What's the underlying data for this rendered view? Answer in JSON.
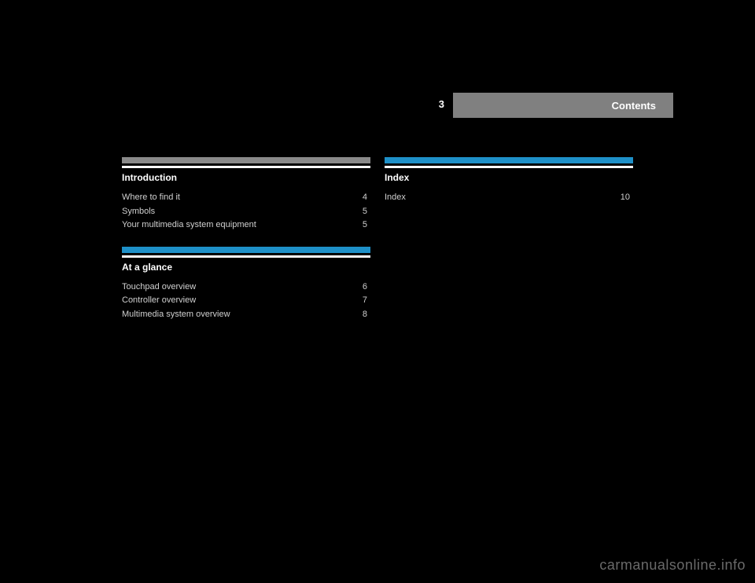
{
  "header": {
    "page_number": "3",
    "title": "Contents"
  },
  "columns": {
    "left": {
      "sections": [
        {
          "style": "gray",
          "title": "Introduction",
          "entries": [
            {
              "text": "Where to find it",
              "page": "4"
            },
            {
              "text": "Symbols",
              "page": "5"
            },
            {
              "text": "Your multimedia system equipment",
              "page": "5"
            }
          ]
        },
        {
          "style": "blue",
          "title": "At a glance",
          "entries": [
            {
              "text": "Touchpad overview",
              "page": "6"
            },
            {
              "text": "Controller overview",
              "page": "7"
            },
            {
              "text": "Multimedia system overview",
              "page": "8"
            }
          ]
        }
      ]
    },
    "right": {
      "sections": [
        {
          "style": "blue",
          "title": "Index",
          "entries": [
            {
              "text": "Index",
              "page": "10"
            }
          ]
        }
      ]
    }
  },
  "watermark": "carmanualsonline.info",
  "colors": {
    "background": "#000000",
    "gray_header": "#8a8a8a",
    "blue_header": "#1e90c8",
    "page_header_bg": "#808080",
    "text_primary": "#ffffff",
    "text_secondary": "#d0d0d0",
    "watermark_color": "#6a6a6a"
  }
}
